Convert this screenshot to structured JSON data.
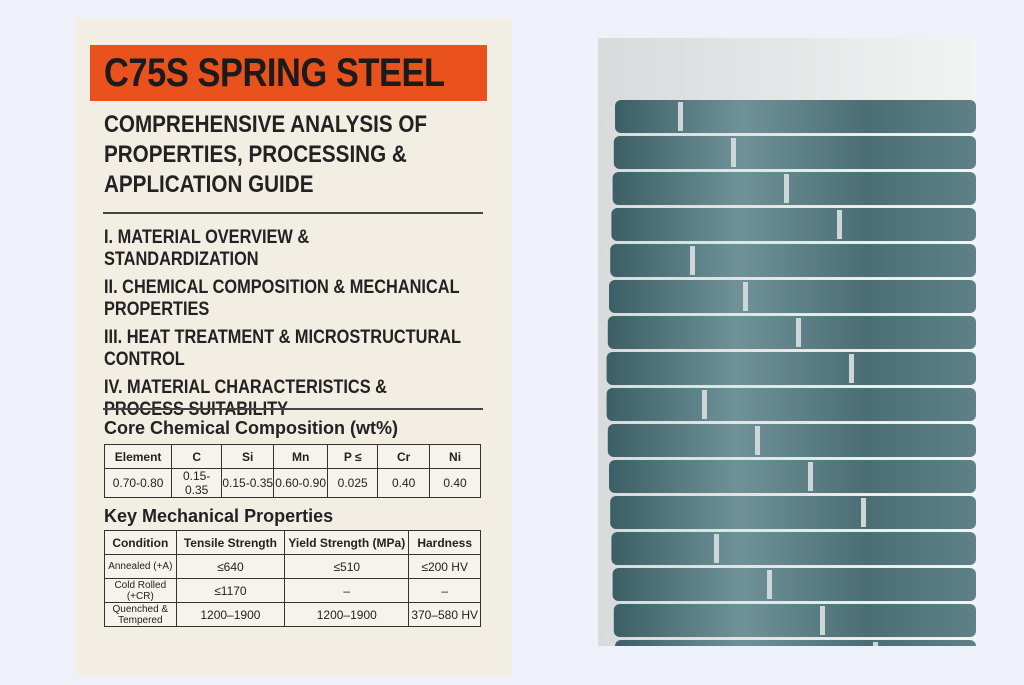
{
  "header": {
    "title": "C75S SPRING STEEL",
    "subtitle": [
      "COMPREHENSIVE ANALYSIS OF",
      "PROPERTIES, PROCESSING &",
      "APPLICATION GUIDE"
    ]
  },
  "sections": [
    "I. MATERIAL OVERVIEW & STANDARDIZATION",
    "II. CHEMICAL COMPOSITION & MECHANICAL PROPERTIES",
    "III. HEAT TREATMENT & MICROSTRUCTURAL CONTROL",
    "IV. MATERIAL CHARACTERISTICS & PROCESS SUITABILITY"
  ],
  "composition": {
    "title": "Core Chemical Composition (wt%)",
    "columns": [
      "Element",
      "C",
      "Si",
      "Mn",
      "P ≤",
      "Cr",
      "Ni"
    ],
    "rows": [
      [
        "0.70-0.80",
        "0.15-0.35",
        "0.15-0.35",
        "0.60-0.90",
        "0.025",
        "0.40",
        "0.40"
      ]
    ]
  },
  "mechanical": {
    "title": "Key Mechanical Properties",
    "columns": [
      "Condition",
      "Tensile Strength",
      "Yield Strength (MPa)",
      "Hardness"
    ],
    "rows": [
      [
        "Annealed (+A)",
        "≤640",
        "≤510",
        "≤200 HV"
      ],
      [
        "Cold Rolled (+CR)",
        "≤1170",
        "–",
        "–"
      ],
      [
        "Quenched & Tempered",
        "1200–1900",
        "1200–1900",
        "370–580 HV"
      ]
    ]
  }
}
